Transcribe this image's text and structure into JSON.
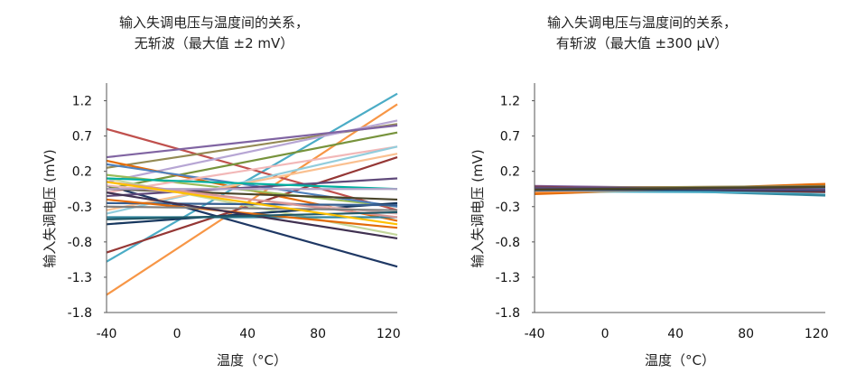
{
  "chart_data": [
    {
      "type": "line",
      "title": "输入失调电压与温度间的关系，",
      "subtitle": "无斩波（最大值 ±2 mV）",
      "xlabel": "温度（°C）",
      "ylabel": "输入失调电压 (mV)",
      "xlim": [
        -40,
        125
      ],
      "ylim": [
        -1.8,
        1.45
      ],
      "xticks": [
        "-40",
        "0",
        "40",
        "80",
        "120"
      ],
      "yticks": [
        "1.2",
        "0.7",
        "0.2",
        "-0.3",
        "-0.8",
        "-1.3",
        "-1.8"
      ],
      "grid": false,
      "x": [
        -40,
        125
      ],
      "series": [
        {
          "color": "#4bacc6",
          "values": [
            -1.08,
            1.3
          ]
        },
        {
          "color": "#f79646",
          "values": [
            -1.55,
            1.15
          ]
        },
        {
          "color": "#c0504d",
          "values": [
            0.8,
            -0.35
          ]
        },
        {
          "color": "#1f3864",
          "values": [
            0.0,
            -1.15
          ]
        },
        {
          "color": "#948a54",
          "values": [
            0.25,
            0.87
          ]
        },
        {
          "color": "#b7a6d4",
          "values": [
            0.05,
            0.92
          ]
        },
        {
          "color": "#8064a2",
          "values": [
            0.4,
            0.85
          ]
        },
        {
          "color": "#77933c",
          "values": [
            -0.05,
            0.75
          ]
        },
        {
          "color": "#e46c0a",
          "values": [
            0.35,
            -0.5
          ]
        },
        {
          "color": "#953735",
          "values": [
            -0.95,
            0.4
          ]
        },
        {
          "color": "#9bbb59",
          "values": [
            0.15,
            -0.3
          ]
        },
        {
          "color": "#4f81bd",
          "values": [
            0.3,
            -0.3
          ]
        },
        {
          "color": "#f2b8b8",
          "values": [
            -0.1,
            0.55
          ]
        },
        {
          "color": "#92cddc",
          "values": [
            -0.4,
            0.55
          ]
        },
        {
          "color": "#fac090",
          "values": [
            -0.35,
            0.45
          ]
        },
        {
          "color": "#c3d69b",
          "values": [
            0.1,
            -0.7
          ]
        },
        {
          "color": "#17375e",
          "values": [
            -0.55,
            -0.25
          ]
        },
        {
          "color": "#31859c",
          "values": [
            -0.45,
            -0.45
          ]
        },
        {
          "color": "#604a7b",
          "values": [
            -0.15,
            0.1
          ]
        },
        {
          "color": "#4a452a",
          "values": [
            -0.05,
            -0.2
          ]
        },
        {
          "color": "#e6b9b8",
          "values": [
            0.0,
            -0.4
          ]
        },
        {
          "color": "#376092",
          "values": [
            -0.25,
            -0.28
          ]
        },
        {
          "color": "#d99694",
          "values": [
            0.05,
            -0.45
          ]
        },
        {
          "color": "#e26b0a",
          "values": [
            -0.2,
            -0.6
          ]
        },
        {
          "color": "#00b0a0",
          "values": [
            0.1,
            -0.05
          ]
        },
        {
          "color": "#7f7f7f",
          "values": [
            -0.3,
            -0.35
          ]
        },
        {
          "color": "#403151",
          "values": [
            -0.1,
            -0.75
          ]
        },
        {
          "color": "#b3a2c7",
          "values": [
            -0.05,
            -0.05
          ]
        },
        {
          "color": "#215968",
          "values": [
            -0.48,
            -0.38
          ]
        },
        {
          "color": "#ffc000",
          "values": [
            0.05,
            -0.55
          ]
        }
      ]
    },
    {
      "type": "line",
      "title": "输入失调电压与温度间的关系，",
      "subtitle": "有斩波（最大值 ±300 μV）",
      "xlabel": "温度（°C）",
      "ylabel": "输入失调电压 (mV)",
      "xlim": [
        -40,
        125
      ],
      "ylim": [
        -1.8,
        1.45
      ],
      "xticks": [
        "-40",
        "0",
        "40",
        "80",
        "120"
      ],
      "yticks": [
        "1.2",
        "0.7",
        "0.2",
        "-0.3",
        "-0.8",
        "-1.3",
        "-1.8"
      ],
      "grid": false,
      "x": [
        -40,
        125
      ],
      "series": [
        {
          "color": "#e46c0a",
          "values": [
            -0.12,
            0.02
          ]
        },
        {
          "color": "#31859c",
          "values": [
            -0.02,
            -0.14
          ]
        },
        {
          "color": "#1f3864",
          "values": [
            -0.05,
            -0.08
          ]
        },
        {
          "color": "#c0504d",
          "values": [
            -0.03,
            -0.02
          ]
        },
        {
          "color": "#77933c",
          "values": [
            -0.06,
            -0.04
          ]
        },
        {
          "color": "#8064a2",
          "values": [
            -0.01,
            -0.06
          ]
        },
        {
          "color": "#4bacc6",
          "values": [
            -0.08,
            -0.1
          ]
        },
        {
          "color": "#948a54",
          "values": [
            -0.04,
            -0.01
          ]
        },
        {
          "color": "#f79646",
          "values": [
            -0.09,
            -0.03
          ]
        },
        {
          "color": "#953735",
          "values": [
            -0.02,
            -0.09
          ]
        },
        {
          "color": "#4f81bd",
          "values": [
            -0.07,
            -0.05
          ]
        },
        {
          "color": "#17375e",
          "values": [
            -0.05,
            -0.07
          ]
        },
        {
          "color": "#604a7b",
          "values": [
            -0.03,
            -0.06
          ]
        },
        {
          "color": "#4a452a",
          "values": [
            -0.06,
            -0.02
          ]
        }
      ]
    }
  ]
}
